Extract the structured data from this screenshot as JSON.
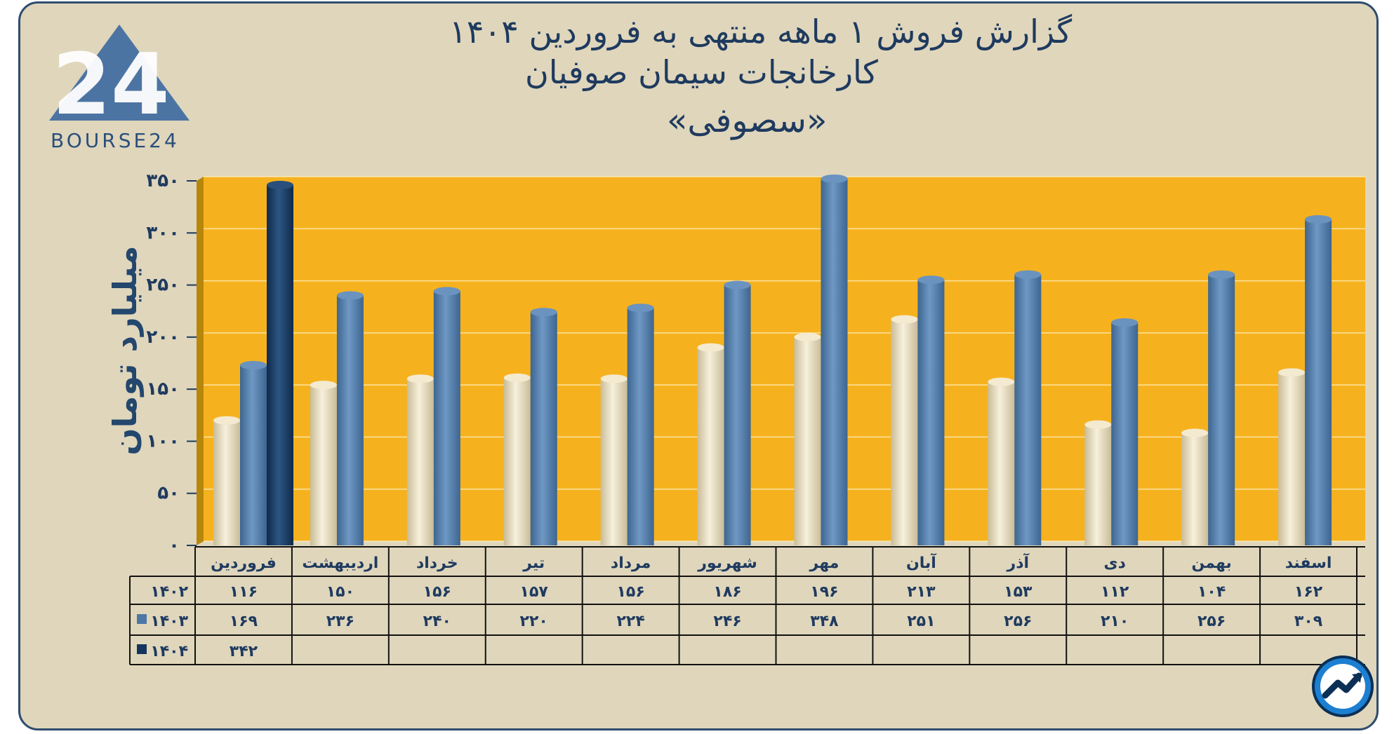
{
  "title": {
    "line1": "گزارش  فروش ۱ ماهه منتهی به فروردین ۱۴۰۴",
    "line2": "کارخانجات سیمان صوفیان",
    "line3": "«سصوفی»"
  },
  "logo": {
    "text": "BOURSE24",
    "mark": "24",
    "icon": "bourse24-logo-icon"
  },
  "corner_icon": "trend-arrow-icon",
  "colors": {
    "background": "#dfd6bc",
    "plot_area": "#f6b21e",
    "series_1402": "#e8dcbc",
    "series_1403": "#4d78a6",
    "series_1404": "#16355c",
    "text": "#1f3a5f"
  },
  "chart_data": {
    "type": "bar",
    "title": "گزارش  فروش ۱ ماهه منتهی به فروردین ۱۴۰۴ کارخانجات سیمان صوفیان «سصوفی»",
    "ylabel": "میلیارد تومان",
    "xlabel": "",
    "ylim": [
      0,
      350
    ],
    "yticks": [
      0,
      50,
      100,
      150,
      200,
      250,
      300,
      350
    ],
    "ytick_labels": [
      "۰",
      "۵۰",
      "۱۰۰",
      "۱۵۰",
      "۲۰۰",
      "۲۵۰",
      "۳۰۰",
      "۳۵۰"
    ],
    "grid": true,
    "categories": [
      "فروردین",
      "اردیبهشت",
      "خرداد",
      "تیر",
      "مرداد",
      "شهریور",
      "مهر",
      "آبان",
      "آذر",
      "دی",
      "بهمن",
      "اسفند"
    ],
    "series": [
      {
        "name": "۱۴۰۲",
        "values": [
          116,
          150,
          156,
          157,
          156,
          186,
          196,
          213,
          153,
          112,
          104,
          162
        ],
        "labels": [
          "۱۱۶",
          "۱۵۰",
          "۱۵۶",
          "۱۵۷",
          "۱۵۶",
          "۱۸۶",
          "۱۹۶",
          "۲۱۳",
          "۱۵۳",
          "۱۱۲",
          "۱۰۴",
          "۱۶۲"
        ]
      },
      {
        "name": "۱۴۰۳",
        "values": [
          169,
          236,
          240,
          220,
          224,
          246,
          348,
          251,
          256,
          210,
          256,
          309
        ],
        "labels": [
          "۱۶۹",
          "۲۳۶",
          "۲۴۰",
          "۲۲۰",
          "۲۲۴",
          "۲۴۶",
          "۳۴۸",
          "۲۵۱",
          "۲۵۶",
          "۲۱۰",
          "۲۵۶",
          "۳۰۹"
        ]
      },
      {
        "name": "۱۴۰۴",
        "values": [
          342,
          null,
          null,
          null,
          null,
          null,
          null,
          null,
          null,
          null,
          null,
          null
        ],
        "labels": [
          "۳۴۲",
          "",
          "",
          "",
          "",
          "",
          "",
          "",
          "",
          "",
          "",
          ""
        ]
      }
    ]
  }
}
